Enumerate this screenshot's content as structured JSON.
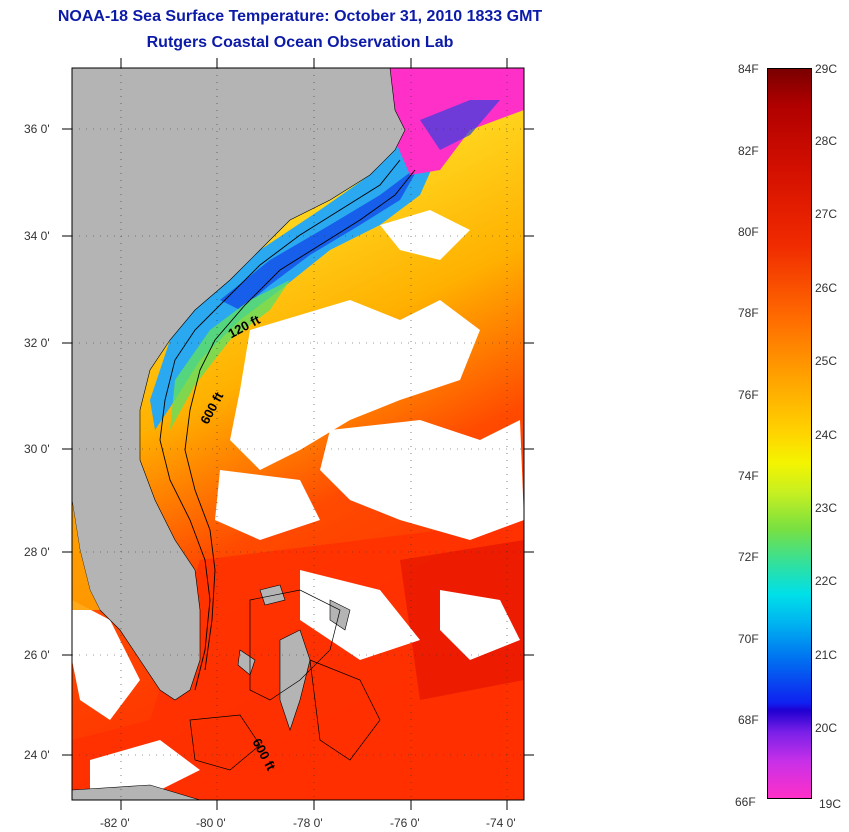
{
  "title": {
    "line1": "NOAA-18 Sea Surface Temperature:  October 31, 2010 1833 GMT",
    "line2": "Rutgers Coastal Ocean Observation Lab"
  },
  "map": {
    "lat_ticks": [
      "36 0'",
      "34 0'",
      "32 0'",
      "30 0'",
      "28 0'",
      "26 0'",
      "24 0'"
    ],
    "lon_ticks": [
      "-82 0'",
      "-80 0'",
      "-78 0'",
      "-76 0'",
      "-74 0'"
    ],
    "contour_labels": [
      "120 ft",
      "600 ft",
      "600 ft"
    ],
    "colors": {
      "land": "#b4b4b4",
      "cloud": "#ffffff",
      "contour": "#000000"
    }
  },
  "colorbar": {
    "fahrenheit": [
      "84F",
      "82F",
      "80F",
      "78F",
      "76F",
      "74F",
      "72F",
      "70F",
      "68F",
      "66F"
    ],
    "celsius": [
      "29C",
      "28C",
      "27C",
      "26C",
      "25C",
      "24C",
      "23C",
      "22C",
      "21C",
      "20C",
      "19C"
    ]
  }
}
